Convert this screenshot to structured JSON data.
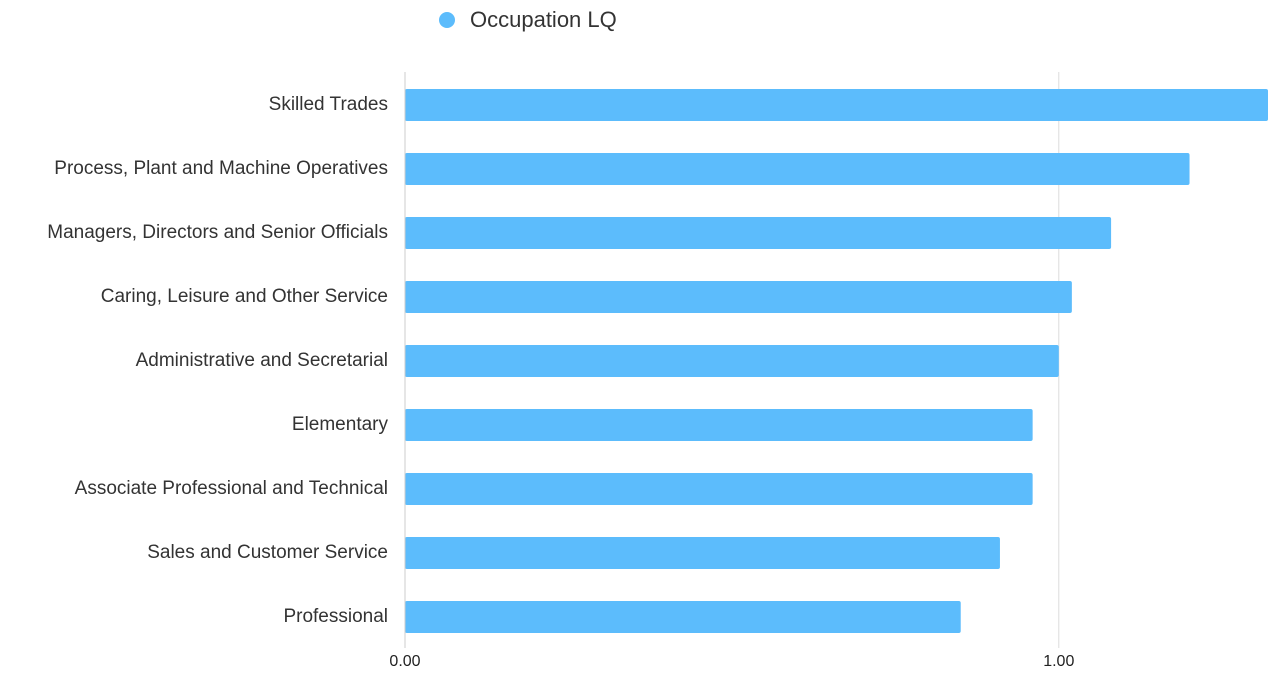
{
  "chart_data": {
    "type": "barh",
    "series": [
      {
        "name": "Occupation LQ",
        "color": "#5cbcfc",
        "values": [
          1.32,
          1.2,
          1.08,
          1.02,
          1.0,
          0.96,
          0.96,
          0.91,
          0.85
        ]
      }
    ],
    "categories": [
      "Skilled Trades",
      "Process, Plant and Machine Operatives",
      "Managers, Directors and Senior Officials",
      "Caring, Leisure and Other Service",
      "Administrative and Secretarial",
      "Elementary",
      "Associate Professional and Technical",
      "Sales and Customer Service",
      "Professional"
    ],
    "xlim": [
      0,
      1.32
    ],
    "xticks": [
      {
        "value": 0,
        "label": "0.00"
      },
      {
        "value": 1,
        "label": "1.00"
      }
    ],
    "grid": true,
    "legend": "top"
  }
}
